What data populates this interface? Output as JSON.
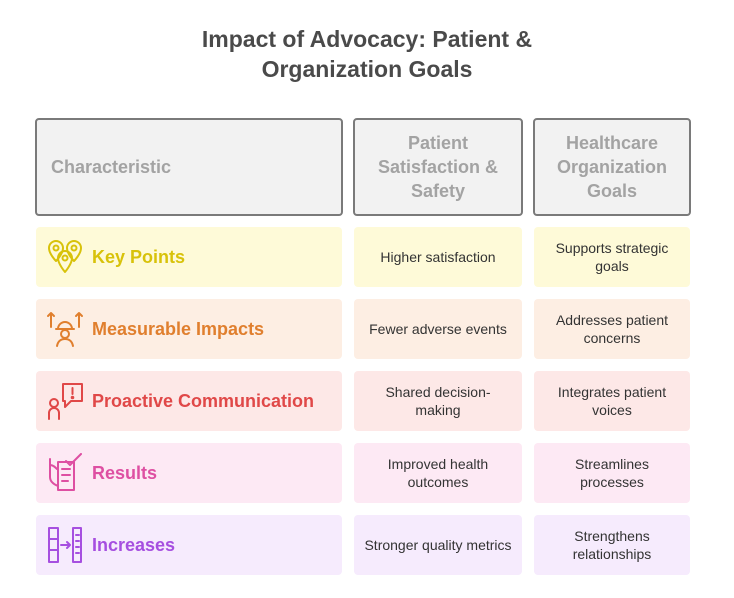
{
  "title": {
    "line1": "Impact of Advocacy: Patient &",
    "line2": "Organization Goals"
  },
  "headers": {
    "col1": "Characteristic",
    "col2": "Patient Satisfaction & Safety",
    "col3": "Healthcare Organization Goals"
  },
  "rows": [
    {
      "label": "Key Points",
      "icon": "location-pins-icon",
      "color": "#d8c20a",
      "bg": "#fefad8",
      "patient": "Higher satisfaction",
      "organization": "Supports strategic goals"
    },
    {
      "label": "Measurable Impacts",
      "icon": "worker-arrows-icon",
      "color": "#e07f2e",
      "bg": "#fdeee3",
      "patient": "Fewer adverse events",
      "organization": "Addresses patient concerns"
    },
    {
      "label": "Proactive Communication",
      "icon": "person-alert-bubble-icon",
      "color": "#e04848",
      "bg": "#fde8e7",
      "patient": "Shared decision-making",
      "organization": "Integrates patient voices"
    },
    {
      "label": "Results",
      "icon": "checklist-hand-icon",
      "color": "#de4fa2",
      "bg": "#fde9f4",
      "patient": "Improved health outcomes",
      "organization": "Streamlines processes"
    },
    {
      "label": "Increases",
      "icon": "columns-arrow-icon",
      "color": "#a64fe0",
      "bg": "#f6ebfd",
      "patient": "Stronger quality metrics",
      "organization": "Strengthens relationships"
    }
  ]
}
